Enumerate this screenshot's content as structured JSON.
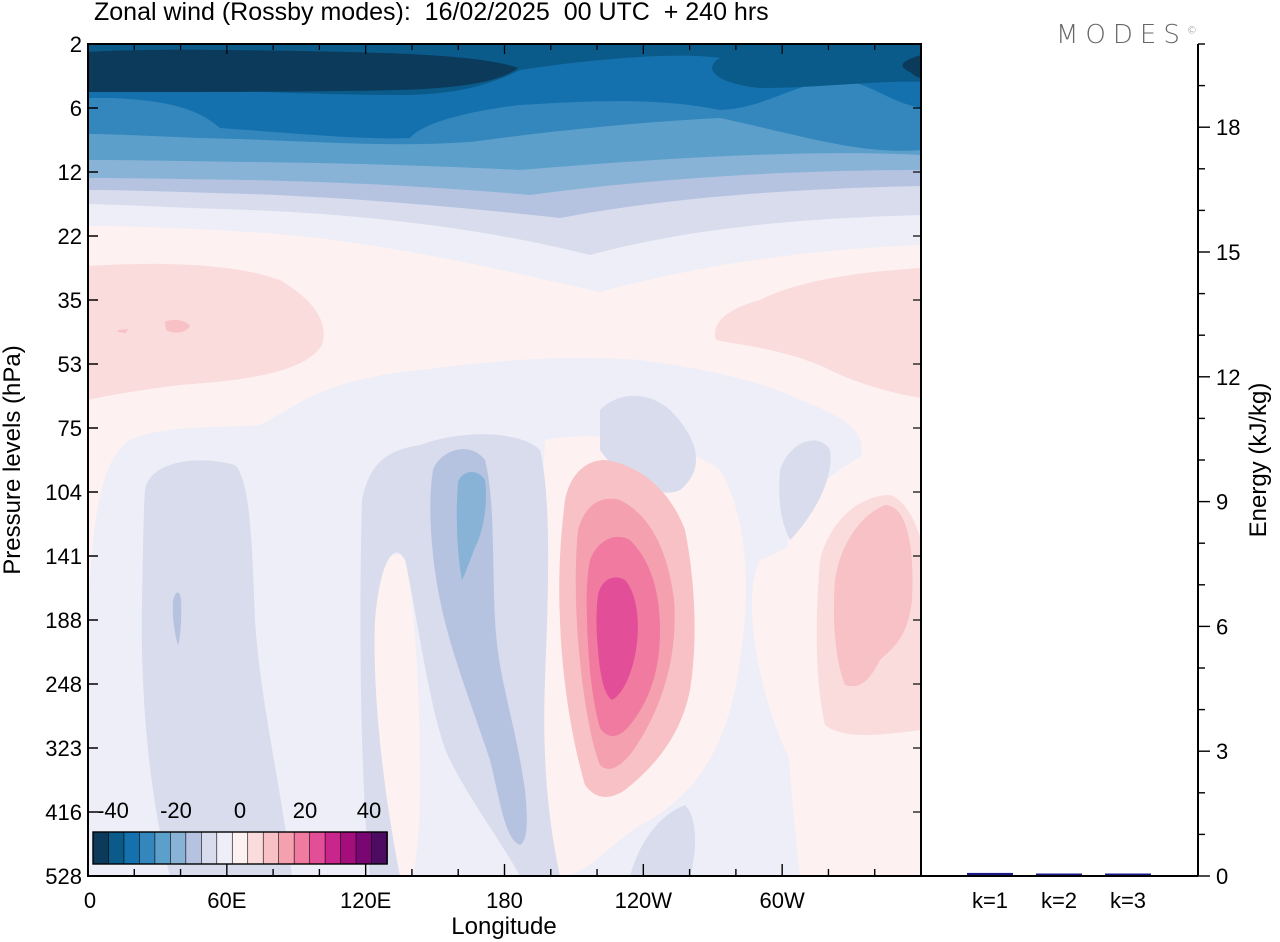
{
  "header": {
    "title": "Zonal wind (Rossby modes):  16/02/2025  00 UTC  + 240 hrs",
    "brand": "MODES",
    "brand_mark": "©"
  },
  "chart_data": [
    {
      "type": "heatmap",
      "title": "Zonal wind (Rossby modes):  16/02/2025  00 UTC  + 240 hrs",
      "xlabel": "Longitude",
      "ylabel": "Pressure levels (hPa)",
      "xticks": [
        "0",
        "60E",
        "120E",
        "180",
        "120W",
        "60W"
      ],
      "xtick_degrees": [
        0,
        60,
        120,
        180,
        240,
        300
      ],
      "xlim": [
        0,
        360
      ],
      "yticks": [
        2,
        6,
        12,
        22,
        35,
        53,
        75,
        104,
        141,
        188,
        248,
        323,
        416,
        528
      ],
      "colorbar": {
        "tick_labels": [
          "-40",
          "-20",
          "0",
          "20",
          "40"
        ],
        "levels": [
          -45,
          -40,
          -35,
          -30,
          -25,
          -20,
          -15,
          -10,
          -5,
          0,
          5,
          10,
          15,
          20,
          25,
          30,
          35,
          40,
          45
        ],
        "colors": [
          "#0b3a5a",
          "#0a5a8a",
          "#1471ad",
          "#3387bd",
          "#5d9fcb",
          "#89b3d6",
          "#b5c3e0",
          "#d8dcec",
          "#edeef7",
          "#fdf1f1",
          "#fbdcdd",
          "#f8c1c5",
          "#f5a0ae",
          "#f07aa0",
          "#e24e98",
          "#c8268c",
          "#a30d7c",
          "#7a0673",
          "#4e0b62"
        ]
      },
      "features": [
        {
          "kind": "stratospheric easterlies",
          "pressure_range_hPa": [
            2,
            20
          ],
          "value_min": -45,
          "value_max": -5
        },
        {
          "kind": "westerly maximum",
          "longitude": "~240E",
          "pressure_hPa": 200,
          "value": 30
        },
        {
          "kind": "westerly maximum",
          "longitude": "~335E",
          "pressure_hPa": 180,
          "value": 15
        },
        {
          "kind": "westerly band",
          "pressure_range_hPa": [
            25,
            60
          ],
          "value": 5
        },
        {
          "kind": "easterly minimum",
          "longitude": "~165E",
          "pressure_hPa": 110,
          "value": -15
        }
      ]
    },
    {
      "type": "bar",
      "ylabel": "Energy (kJ/kg)",
      "categories": [
        "k=1",
        "k=2",
        "k=3"
      ],
      "values": [
        0.05,
        0.02,
        0.02
      ],
      "ylim": [
        0,
        20
      ],
      "yticks": [
        0,
        3,
        6,
        9,
        12,
        15,
        18
      ],
      "bar_color": "#1a1a8c"
    }
  ]
}
